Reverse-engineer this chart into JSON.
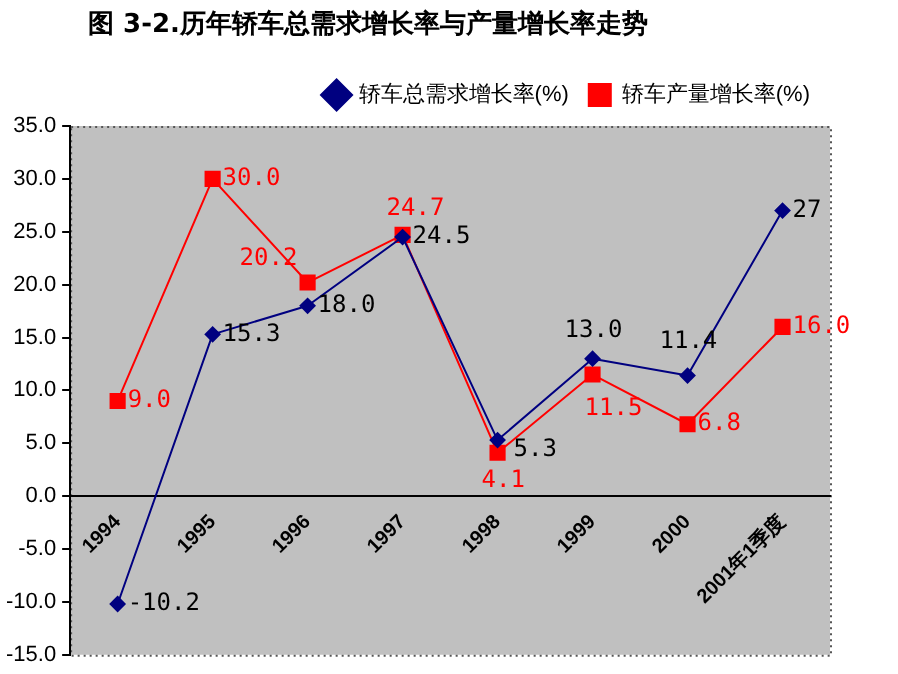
{
  "chart_data": {
    "type": "line",
    "title": "图 3-2.历年轿车总需求增长率与产量增长率走势",
    "categories": [
      "1994",
      "1995",
      "1996",
      "1997",
      "1998",
      "1999",
      "2000",
      "2001年1季度"
    ],
    "series": [
      {
        "name": "轿车总需求增长率(%)",
        "color": "#000080",
        "marker": "diamond",
        "values": [
          -10.2,
          15.3,
          18.0,
          24.5,
          5.3,
          13.0,
          11.4,
          27
        ],
        "value_labels": [
          "-10.2",
          "15.3",
          "18.0",
          "24.5",
          "5.3",
          "13.0",
          "11.4",
          "27"
        ]
      },
      {
        "name": "轿车产量增长率(%)",
        "color": "#ff0000",
        "marker": "square",
        "values": [
          9.0,
          30.0,
          20.2,
          24.7,
          4.1,
          11.5,
          6.8,
          16.0
        ],
        "value_labels": [
          "9.0",
          "30.0",
          "20.2",
          "24.7",
          "4.1",
          "11.5",
          "6.8",
          "16.0"
        ]
      }
    ],
    "ylim": [
      -15,
      35
    ],
    "yticks": [
      {
        "value": -15,
        "label": "-15.0"
      },
      {
        "value": -10,
        "label": "-10.0"
      },
      {
        "value": -5,
        "label": "-5.0"
      },
      {
        "value": 0,
        "label": "0.0"
      },
      {
        "value": 5,
        "label": "5.0"
      },
      {
        "value": 10,
        "label": "10.0"
      },
      {
        "value": 15,
        "label": "15.0"
      },
      {
        "value": 20,
        "label": "20.0"
      },
      {
        "value": 25,
        "label": "25.0"
      },
      {
        "value": 30,
        "label": "30.0"
      },
      {
        "value": 35,
        "label": "35.0"
      }
    ],
    "grid": false,
    "legend": "top right"
  }
}
